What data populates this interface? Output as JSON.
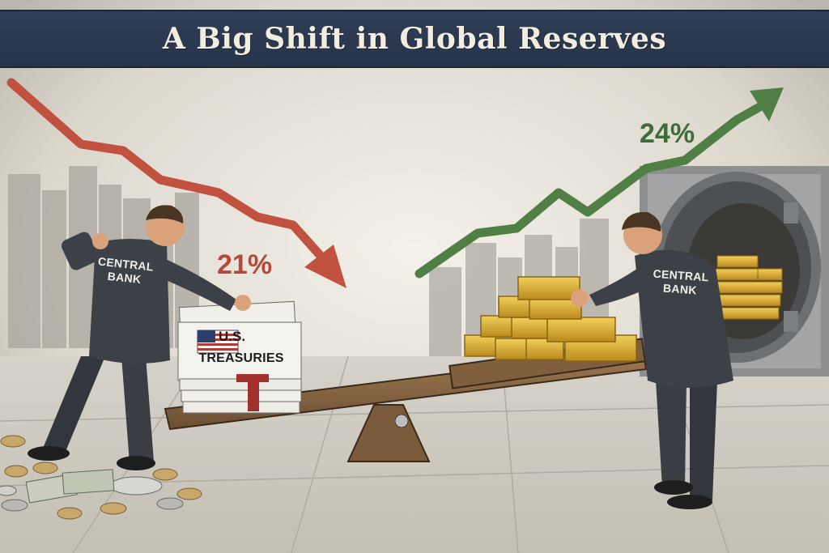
{
  "banner": {
    "title": "A Big Shift in Global Reserves"
  },
  "treasuries": {
    "percent": "21%",
    "label_line1": "U.S.",
    "label_line2": "TREASURIES",
    "trend": "down"
  },
  "gold": {
    "percent": "24%",
    "trend": "up"
  },
  "figures": {
    "left": {
      "label_line1": "CENTRAL",
      "label_line2": "BANK"
    },
    "right": {
      "label_line1": "CENTRAL",
      "label_line2": "BANK"
    }
  },
  "colors": {
    "banner_bg": "#2f3f57",
    "down_arrow": "#c0523f",
    "up_arrow": "#4f7f44",
    "gold": "#d9a932",
    "suit": "#3c4148",
    "seesaw_wood": "#8a6a48"
  },
  "icons": [
    "down-trend-arrow-icon",
    "up-trend-arrow-icon",
    "us-flag-icon",
    "vault-door-icon",
    "gold-bar-icon",
    "coin-icon"
  ]
}
